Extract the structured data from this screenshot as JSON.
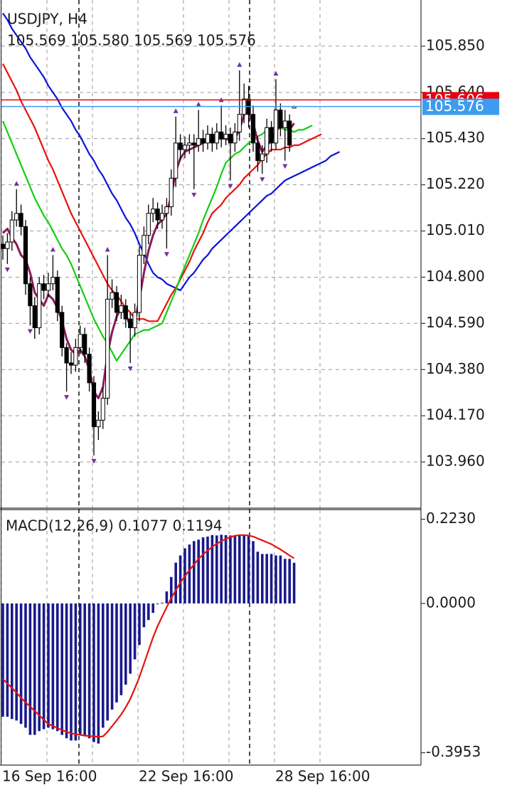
{
  "chart_data": [
    {
      "type": "candlestick",
      "title": "USDJPY, H4",
      "subtitle": "105.569 105.580 105.569 105.576",
      "categories": [
        "16 Sep 16:00",
        null,
        null,
        null,
        null,
        null,
        null,
        null,
        null,
        null,
        null,
        null,
        null,
        null,
        null,
        null,
        null,
        null,
        null,
        null,
        null,
        null,
        null,
        null,
        null,
        null,
        null,
        null,
        null,
        null,
        "22 Sep 16:00",
        null,
        null,
        null,
        null,
        null,
        null,
        null,
        null,
        null,
        null,
        null,
        null,
        null,
        null,
        null,
        null,
        null,
        null,
        null,
        null,
        null,
        null,
        null,
        null,
        null,
        null,
        null,
        null,
        null,
        "28 Sep 16:00",
        null,
        null,
        null,
        null,
        null,
        null,
        null,
        null,
        null,
        null,
        null,
        null,
        null,
        null
      ],
      "open": [
        104.95,
        104.93,
        104.96,
        105.06,
        105.09,
        105.03,
        104.77,
        104.67,
        104.57,
        104.77,
        104.74,
        104.77,
        104.8,
        104.64,
        104.48,
        104.41,
        104.4,
        104.48,
        104.54,
        104.45,
        104.32,
        104.12,
        104.15,
        104.25,
        104.7,
        104.73,
        104.64,
        104.67,
        104.61,
        104.57,
        104.64,
        104.9,
        104.99,
        105.09,
        105.11,
        105.06,
        105.09,
        105.12,
        105.25,
        105.41,
        105.38,
        105.4,
        105.41,
        105.4,
        105.43,
        105.41,
        105.45,
        105.41,
        105.46,
        105.43,
        105.45,
        105.41,
        105.46,
        105.54,
        105.61,
        105.54,
        105.41,
        105.33,
        105.36,
        105.48,
        105.41,
        105.56,
        105.48,
        105.51,
        105.569,
        null,
        null,
        null,
        null,
        null,
        null,
        null,
        null,
        null,
        null
      ],
      "high": [
        104.99,
        105.0,
        105.1,
        105.2,
        105.13,
        105.06,
        104.8,
        104.71,
        104.8,
        104.81,
        104.82,
        104.9,
        104.83,
        104.67,
        104.5,
        104.46,
        104.52,
        104.58,
        104.57,
        104.48,
        104.35,
        104.19,
        104.3,
        104.9,
        104.79,
        104.76,
        104.72,
        104.7,
        104.64,
        104.68,
        104.94,
        105.03,
        105.13,
        105.16,
        105.14,
        105.13,
        105.16,
        105.29,
        105.53,
        105.45,
        105.44,
        105.45,
        105.45,
        105.56,
        105.47,
        105.49,
        105.48,
        105.5,
        105.58,
        105.49,
        105.48,
        105.5,
        105.74,
        105.68,
        105.67,
        105.58,
        105.44,
        105.4,
        105.52,
        105.51,
        105.7,
        105.59,
        105.56,
        105.54,
        105.58,
        null,
        null,
        null,
        null,
        null,
        null,
        null,
        null,
        null,
        null
      ],
      "low": [
        104.88,
        104.86,
        104.92,
        105.03,
        104.99,
        104.72,
        104.58,
        104.52,
        104.54,
        104.7,
        104.71,
        104.74,
        104.6,
        104.44,
        104.28,
        104.36,
        104.37,
        104.45,
        104.41,
        104.28,
        103.99,
        104.06,
        104.11,
        104.22,
        104.66,
        104.6,
        104.61,
        104.57,
        104.41,
        104.53,
        104.6,
        104.86,
        104.95,
        105.05,
        105.02,
        105.02,
        104.93,
        105.08,
        105.21,
        105.33,
        105.34,
        105.36,
        105.2,
        105.37,
        105.37,
        105.38,
        105.37,
        105.38,
        105.39,
        105.4,
        105.24,
        105.37,
        105.42,
        105.5,
        105.48,
        105.37,
        105.28,
        105.27,
        105.32,
        105.37,
        105.38,
        105.44,
        105.33,
        105.37,
        105.569,
        null,
        null,
        null,
        null,
        null,
        null,
        null,
        null,
        null,
        null
      ],
      "close": [
        104.93,
        104.96,
        105.06,
        105.09,
        105.03,
        104.77,
        104.67,
        104.57,
        104.77,
        104.74,
        104.77,
        104.8,
        104.64,
        104.48,
        104.41,
        104.4,
        104.48,
        104.54,
        104.45,
        104.32,
        104.12,
        104.15,
        104.25,
        104.7,
        104.73,
        104.64,
        104.67,
        104.61,
        104.57,
        104.64,
        104.9,
        104.99,
        105.09,
        105.11,
        105.06,
        105.09,
        105.12,
        105.25,
        105.41,
        105.38,
        105.4,
        105.41,
        105.4,
        105.43,
        105.41,
        105.45,
        105.41,
        105.46,
        105.43,
        105.45,
        105.41,
        105.46,
        105.54,
        105.61,
        105.54,
        105.41,
        105.33,
        105.36,
        105.48,
        105.41,
        105.56,
        105.48,
        105.51,
        105.4,
        105.576,
        null,
        null,
        null,
        null,
        null,
        null,
        null,
        null,
        null,
        null
      ],
      "series": [
        {
          "color": "#0b14d6",
          "values": [
            106.0,
            105.97,
            105.93,
            105.9,
            105.87,
            105.84,
            105.8,
            105.77,
            105.74,
            105.71,
            105.67,
            105.64,
            105.61,
            105.57,
            105.54,
            105.51,
            105.47,
            105.44,
            105.4,
            105.36,
            105.33,
            105.29,
            105.26,
            105.22,
            105.18,
            105.15,
            105.11,
            105.07,
            105.04,
            105.0,
            104.95,
            104.91,
            104.86,
            104.82,
            104.8,
            104.79,
            104.77,
            104.76,
            104.75,
            104.74,
            104.77,
            104.8,
            104.82,
            104.85,
            104.88,
            104.9,
            104.93,
            104.95,
            104.97,
            104.99,
            105.01,
            105.03,
            105.05,
            105.07,
            105.09,
            105.11,
            105.13,
            105.15,
            105.17,
            105.18,
            105.2,
            105.22,
            105.24,
            105.25,
            105.26,
            105.27,
            105.28,
            105.29,
            105.3,
            105.31,
            105.32,
            105.33,
            105.35,
            105.36,
            105.37
          ]
        },
        {
          "color": "#e8120c",
          "values": [
            105.77,
            105.73,
            105.69,
            105.65,
            105.6,
            105.56,
            105.52,
            105.48,
            105.43,
            105.38,
            105.33,
            105.29,
            105.24,
            105.19,
            105.14,
            105.09,
            105.05,
            105.01,
            104.97,
            104.93,
            104.89,
            104.85,
            104.81,
            104.77,
            104.74,
            104.72,
            104.69,
            104.66,
            104.64,
            104.61,
            104.61,
            104.61,
            104.6,
            104.6,
            104.6,
            104.64,
            104.68,
            104.72,
            104.75,
            104.79,
            104.83,
            104.87,
            104.92,
            104.96,
            105.0,
            105.05,
            105.09,
            105.11,
            105.13,
            105.16,
            105.18,
            105.2,
            105.22,
            105.25,
            105.27,
            105.29,
            105.31,
            105.34,
            105.36,
            105.38,
            105.38,
            105.38,
            105.39,
            105.39,
            105.4,
            105.4,
            105.41,
            105.42,
            105.43,
            105.44,
            105.45,
            null,
            null,
            null,
            null
          ]
        },
        {
          "color": "#10d010",
          "values": [
            105.51,
            105.46,
            105.41,
            105.36,
            105.31,
            105.26,
            105.21,
            105.16,
            105.12,
            105.08,
            105.05,
            105.01,
            104.97,
            104.93,
            104.9,
            104.86,
            104.81,
            104.76,
            104.71,
            104.66,
            104.61,
            104.57,
            104.53,
            104.5,
            104.46,
            104.42,
            104.45,
            104.48,
            104.51,
            104.54,
            104.55,
            104.56,
            104.56,
            104.57,
            104.58,
            104.59,
            104.64,
            104.69,
            104.74,
            104.8,
            104.85,
            104.9,
            104.95,
            105.0,
            105.06,
            105.11,
            105.16,
            105.21,
            105.27,
            105.32,
            105.34,
            105.36,
            105.37,
            105.39,
            105.41,
            105.42,
            105.44,
            105.45,
            105.47,
            105.48,
            105.48,
            105.48,
            105.47,
            105.47,
            105.46,
            105.47,
            105.47,
            105.48,
            105.49,
            null,
            null,
            null,
            null,
            null,
            null
          ]
        },
        {
          "color": "#8b1a5a",
          "values": [
            105.0,
            105.02,
            104.98,
            104.95,
            104.9,
            104.88,
            104.82,
            104.73,
            104.7,
            104.67,
            104.72,
            104.7,
            104.66,
            104.6,
            104.52,
            104.47,
            104.45,
            104.47,
            104.44,
            104.38,
            104.28,
            104.25,
            104.3,
            104.45,
            104.55,
            104.62,
            104.66,
            104.63,
            104.58,
            104.6,
            104.7,
            104.82,
            104.92,
            104.99,
            105.04,
            105.06,
            105.09,
            105.17,
            105.28,
            105.34,
            105.37,
            105.38,
            105.39,
            105.4,
            105.41,
            105.42,
            105.42,
            105.43,
            105.43,
            105.43,
            105.42,
            105.43,
            105.47,
            105.54,
            105.55,
            105.5,
            105.42,
            105.37,
            105.4,
            105.42,
            105.47,
            105.48,
            105.49,
            105.47,
            105.5,
            null,
            null,
            null,
            null,
            null,
            null,
            null,
            null,
            null,
            null
          ]
        }
      ],
      "fractals_up": [
        null,
        null,
        null,
        105.2,
        null,
        null,
        null,
        null,
        null,
        null,
        null,
        104.9,
        null,
        null,
        null,
        null,
        null,
        null,
        null,
        null,
        null,
        null,
        null,
        104.9,
        null,
        null,
        null,
        null,
        null,
        null,
        null,
        null,
        null,
        null,
        null,
        null,
        null,
        null,
        105.53,
        null,
        null,
        null,
        null,
        105.56,
        null,
        null,
        null,
        null,
        105.58,
        null,
        null,
        null,
        105.74,
        null,
        null,
        null,
        null,
        null,
        null,
        null,
        105.7,
        null,
        null,
        null,
        null,
        null,
        null,
        null,
        null,
        null,
        null,
        null,
        null,
        null,
        null
      ],
      "fractals_down": [
        null,
        104.86,
        null,
        null,
        null,
        null,
        104.58,
        null,
        null,
        null,
        null,
        null,
        null,
        null,
        104.28,
        null,
        null,
        null,
        null,
        null,
        103.99,
        null,
        null,
        null,
        null,
        null,
        null,
        null,
        104.41,
        null,
        null,
        null,
        null,
        null,
        null,
        null,
        104.93,
        null,
        null,
        null,
        null,
        null,
        105.2,
        null,
        null,
        null,
        null,
        null,
        null,
        null,
        105.24,
        null,
        null,
        null,
        null,
        null,
        null,
        105.27,
        null,
        null,
        null,
        null,
        105.33,
        null,
        null,
        null,
        null,
        null,
        null,
        null,
        null,
        null,
        null,
        null,
        null
      ],
      "fractal_color": "#7030a0",
      "price_lines": [
        {
          "value": 105.606,
          "label": "105.606",
          "color": "#e8000b"
        },
        {
          "value": 105.576,
          "label": "105.576",
          "color": "#3d9cf0"
        }
      ],
      "ylim": [
        103.75,
        106.06
      ],
      "yticks": [
        {
          "value": 105.85,
          "label": "105.850"
        },
        {
          "value": 105.64,
          "label": "105.640"
        },
        {
          "value": 105.43,
          "label": "105.430"
        },
        {
          "value": 105.22,
          "label": "105.220"
        },
        {
          "value": 105.01,
          "label": "105.010"
        },
        {
          "value": 104.8,
          "label": "104.800"
        },
        {
          "value": 104.59,
          "label": "104.590"
        },
        {
          "value": 104.38,
          "label": "104.380"
        },
        {
          "value": 104.17,
          "label": "104.170"
        },
        {
          "value": 103.96,
          "label": "103.960"
        }
      ],
      "grid": true
    },
    {
      "type": "macd",
      "title": "MACD(12,26,9) 0.1077 0.1194",
      "color": "#1a1a8c",
      "values": [
        -0.3,
        -0.3,
        -0.306,
        -0.31,
        -0.319,
        -0.329,
        -0.348,
        -0.348,
        -0.338,
        -0.333,
        -0.329,
        -0.333,
        -0.338,
        -0.348,
        -0.357,
        -0.363,
        -0.363,
        -0.348,
        -0.352,
        -0.357,
        -0.367,
        -0.371,
        -0.329,
        -0.31,
        -0.281,
        -0.262,
        -0.243,
        -0.215,
        -0.186,
        -0.148,
        -0.11,
        -0.063,
        -0.044,
        -0.025,
        -0.002,
        0.002,
        0.032,
        0.07,
        0.108,
        0.127,
        0.146,
        0.156,
        0.165,
        0.169,
        0.175,
        0.177,
        0.181,
        0.18,
        0.182,
        0.181,
        0.18,
        0.181,
        0.182,
        0.181,
        0.179,
        0.165,
        0.137,
        0.131,
        0.131,
        0.131,
        0.127,
        0.127,
        0.118,
        0.118,
        0.1077
      ],
      "signal": {
        "color": "#e8120c",
        "values": [
          -0.2,
          -0.212,
          -0.224,
          -0.236,
          -0.25,
          -0.262,
          -0.273,
          -0.285,
          -0.296,
          -0.308,
          -0.319,
          -0.324,
          -0.33,
          -0.335,
          -0.34,
          -0.344,
          -0.346,
          -0.348,
          -0.35,
          -0.351,
          -0.352,
          -0.353,
          -0.352,
          -0.34,
          -0.325,
          -0.31,
          -0.294,
          -0.275,
          -0.253,
          -0.225,
          -0.195,
          -0.16,
          -0.125,
          -0.09,
          -0.06,
          -0.035,
          -0.01,
          0.014,
          0.035,
          0.055,
          0.072,
          0.088,
          0.103,
          0.118,
          0.13,
          0.14,
          0.15,
          0.158,
          0.165,
          0.171,
          0.176,
          0.179,
          0.181,
          0.181,
          0.18,
          0.177,
          0.172,
          0.167,
          0.162,
          0.157,
          0.15,
          0.143,
          0.135,
          0.127,
          0.1194
        ]
      },
      "ylim": [
        -0.428,
        0.2485
      ],
      "yticks": [
        {
          "value": 0.223,
          "label": "0.2230"
        },
        {
          "value": 0,
          "label": "0.0000"
        },
        {
          "value": -0.3953,
          "label": "-0.3953"
        }
      ]
    }
  ]
}
